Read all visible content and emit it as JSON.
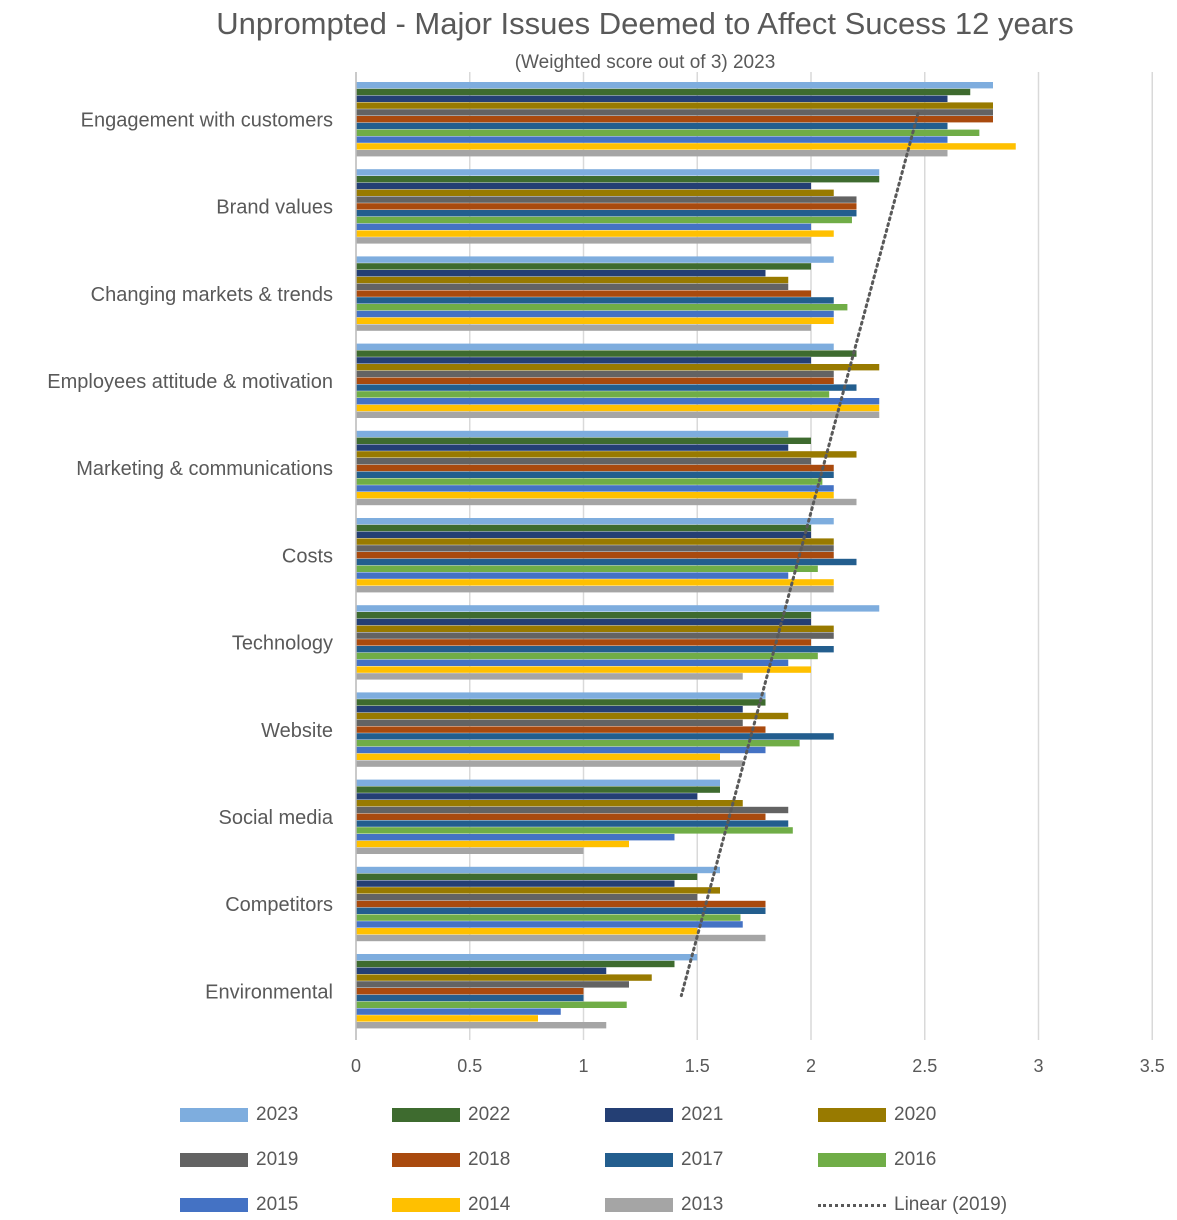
{
  "chart_data": {
    "type": "bar",
    "orientation": "horizontal",
    "title": "Unprompted - Major Issues Deemed to Affect Sucess 12 years",
    "subtitle": "(Weighted score out of 3) 2023",
    "xlim": [
      0,
      3.5
    ],
    "xticks": [
      "0",
      "0.5",
      "1",
      "1.5",
      "2",
      "2.5",
      "3",
      "3.5"
    ],
    "grid": "vertical",
    "legend_position": "bottom",
    "categories": [
      "Engagement with customers",
      "Brand values",
      "Changing markets & trends",
      "Employees attitude & motivation",
      "Marketing & communications",
      "Costs",
      "Technology",
      "Website",
      "Social media",
      "Competitors",
      "Environmental"
    ],
    "series": [
      {
        "name": "2023",
        "color": "#7EADDE",
        "values": [
          2.8,
          2.3,
          2.1,
          2.1,
          1.9,
          2.1,
          2.3,
          1.8,
          1.6,
          1.6,
          1.5
        ]
      },
      {
        "name": "2022",
        "color": "#3E6B2F",
        "values": [
          2.7,
          2.3,
          2.0,
          2.2,
          2.0,
          2.0,
          2.0,
          1.8,
          1.6,
          1.5,
          1.4
        ]
      },
      {
        "name": "2021",
        "color": "#243F74",
        "values": [
          2.6,
          2.0,
          1.8,
          2.0,
          1.9,
          2.0,
          2.0,
          1.7,
          1.5,
          1.4,
          1.1
        ]
      },
      {
        "name": "2020",
        "color": "#987A00",
        "values": [
          2.8,
          2.1,
          1.9,
          2.3,
          2.2,
          2.1,
          2.1,
          1.9,
          1.7,
          1.6,
          1.3
        ]
      },
      {
        "name": "2019",
        "color": "#636363",
        "values": [
          2.8,
          2.2,
          1.9,
          2.1,
          2.0,
          2.1,
          2.1,
          1.7,
          1.9,
          1.5,
          1.2
        ]
      },
      {
        "name": "2018",
        "color": "#A94A0E",
        "values": [
          2.8,
          2.2,
          2.0,
          2.1,
          2.1,
          2.1,
          2.0,
          1.8,
          1.8,
          1.8,
          1.0
        ]
      },
      {
        "name": "2017",
        "color": "#235E8E",
        "values": [
          2.6,
          2.2,
          2.1,
          2.2,
          2.1,
          2.2,
          2.1,
          2.1,
          1.9,
          1.8,
          1.0
        ]
      },
      {
        "name": "2016",
        "color": "#70AD47",
        "values": [
          2.74,
          2.18,
          2.16,
          2.08,
          2.05,
          2.03,
          2.03,
          1.95,
          1.92,
          1.69,
          1.19
        ]
      },
      {
        "name": "2015",
        "color": "#4472C4",
        "values": [
          2.6,
          2.0,
          2.1,
          2.3,
          2.1,
          1.9,
          1.9,
          1.8,
          1.4,
          1.7,
          0.9
        ]
      },
      {
        "name": "2014",
        "color": "#FFC000",
        "values": [
          2.9,
          2.1,
          2.1,
          2.3,
          2.1,
          2.1,
          2.0,
          1.6,
          1.2,
          1.5,
          0.8
        ]
      },
      {
        "name": "2013",
        "color": "#A5A5A5",
        "values": [
          2.6,
          2.0,
          2.0,
          2.3,
          2.2,
          2.1,
          1.7,
          1.7,
          1.0,
          1.8,
          1.1
        ]
      }
    ],
    "trendline": {
      "name": "Linear (2019)",
      "color": "#595959",
      "style": "dotted",
      "from": 2.47,
      "to": 1.43
    }
  }
}
